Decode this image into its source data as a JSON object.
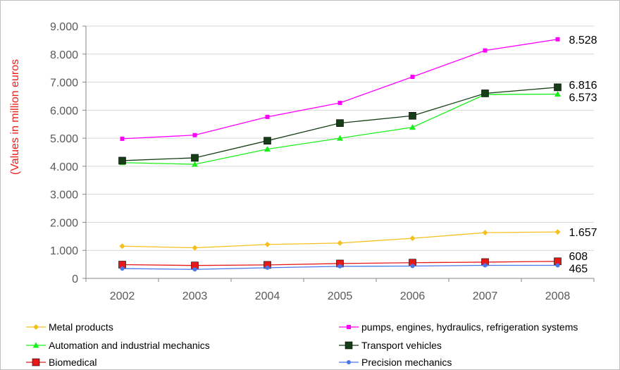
{
  "chart_data": {
    "type": "line",
    "ylabel": "(Values in million euros",
    "xlabel": "",
    "title": "",
    "categories": [
      "2002",
      "2003",
      "2004",
      "2005",
      "2006",
      "2007",
      "2008"
    ],
    "ylim": [
      0,
      9000
    ],
    "yticks": [
      0,
      1000,
      2000,
      3000,
      4000,
      5000,
      6000,
      7000,
      8000,
      9000
    ],
    "ytick_labels": [
      "0",
      "1.000",
      "2.000",
      "3.000",
      "4.000",
      "5.000",
      "6.000",
      "7.000",
      "8.000",
      "9.000"
    ],
    "grid": "horizontal",
    "legend_position": "bottom",
    "series": [
      {
        "name": "Metal products",
        "color": "#f5c01e",
        "marker": "diamond",
        "values": [
          1150,
          1090,
          1210,
          1260,
          1430,
          1630,
          1657
        ],
        "end_label": "1.657"
      },
      {
        "name": "pumps, engines, hydraulics, refrigeration systems",
        "color": "#ff00ff",
        "marker": "square-small",
        "values": [
          4980,
          5110,
          5760,
          6260,
          7190,
          8130,
          8528
        ],
        "end_label": "8.528"
      },
      {
        "name": "Automation and industrial mechanics",
        "color": "#1aef1a",
        "marker": "triangle",
        "values": [
          4130,
          4070,
          4610,
          5000,
          5390,
          6560,
          6573
        ],
        "end_label": "6.573"
      },
      {
        "name": "Transport vehicles",
        "color": "#163e16",
        "marker": "square",
        "values": [
          4200,
          4300,
          4910,
          5540,
          5800,
          6600,
          6816
        ],
        "end_label": "6.816"
      },
      {
        "name": "Biomedical",
        "color": "#e81818",
        "marker": "square",
        "values": [
          490,
          460,
          480,
          530,
          560,
          580,
          608
        ],
        "end_label": "608"
      },
      {
        "name": "Precision mechanics",
        "color": "#4a78e8",
        "marker": "circle",
        "values": [
          350,
          320,
          380,
          430,
          440,
          465,
          465
        ],
        "end_label": "465"
      }
    ]
  }
}
